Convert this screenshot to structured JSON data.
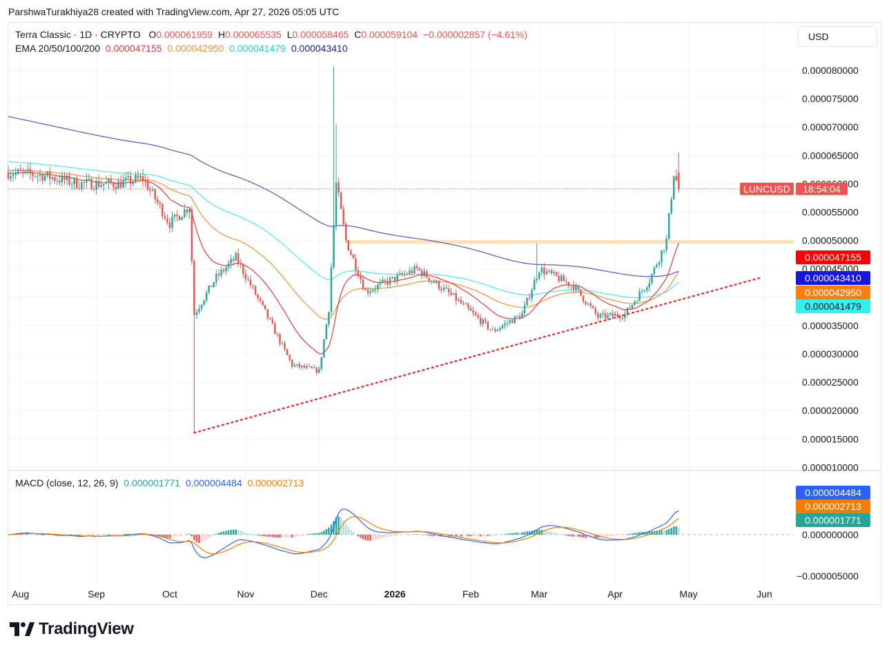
{
  "header": {
    "credit": "ParshwaTurakhiya28 created with TradingView.com, Apr 27, 2026 05:05 UTC"
  },
  "legend": {
    "symbol": "Terra Classic · 1D · CRYPTO",
    "o_label": "O",
    "o_value": "0.000061959",
    "h_label": "H",
    "h_value": "0.000065535",
    "l_label": "L",
    "l_value": "0.000058465",
    "c_label": "C",
    "c_value": "0.000059104",
    "change": "−0.000002857 (−4.61%)",
    "ema_label": "EMA 20/50/100/200",
    "ema20": "0.000047155",
    "ema50": "0.000042950",
    "ema100": "0.000041479",
    "ema200": "0.000043410",
    "macd_label": "MACD (close, 12, 26, 9)",
    "macd_hist": "0.000001771",
    "macd_line": "0.000004484",
    "macd_signal": "0.000002713"
  },
  "currency": "USD",
  "price_tag": {
    "symbol": "LUNCUSD",
    "countdown": "18:54:04"
  },
  "axis_tags": {
    "ema20": "0.000047155",
    "ema200": "0.000043410",
    "ema50": "0.000042950",
    "ema100": "0.000041479",
    "macd_line": "0.000004484",
    "macd_signal": "0.000002713",
    "macd_hist": "0.000001771"
  },
  "colors": {
    "up": "#26a69a",
    "down": "#ef5350",
    "ema20": "#e53935",
    "ema50": "#f0913a",
    "ema100": "#4ee8e4",
    "ema200": "#5b4fc4",
    "macd_line": "#2962ff",
    "macd_signal": "#f57c00",
    "trendline": "#e53935",
    "resistance": "#ffe0b2"
  },
  "brand": "TradingView",
  "chart_data": {
    "type": "candlestick",
    "title": "Terra Classic · 1D · CRYPTO",
    "x_ticks": [
      "Aug",
      "Sep",
      "Oct",
      "Nov",
      "Dec",
      "2026",
      "Feb",
      "Mar",
      "Apr",
      "May",
      "Jun"
    ],
    "y_ticks": [
      "0.000080000",
      "0.000075000",
      "0.000070000",
      "0.000065000",
      "0.000060000",
      "0.000055000",
      "0.000050000",
      "0.000045000",
      "0.000040000",
      "0.000035000",
      "0.000030000",
      "0.000025000",
      "0.000020000",
      "0.000015000",
      "0.000010000"
    ],
    "ylim": [
      1e-05,
      8e-05
    ],
    "macd_ticks": [
      "0.000000000",
      "−0.000005000"
    ],
    "price_series": [
      {
        "date": "2025-07-27",
        "close": 6.2e-05
      },
      {
        "date": "2025-08-10",
        "close": 6.15e-05
      },
      {
        "date": "2025-08-25",
        "close": 6e-05
      },
      {
        "date": "2025-09-10",
        "close": 6e-05
      },
      {
        "date": "2025-09-20",
        "close": 6.1e-05
      },
      {
        "date": "2025-10-01",
        "close": 5.3e-05
      },
      {
        "date": "2025-10-09",
        "close": 5.6e-05
      },
      {
        "date": "2025-10-11",
        "close": 3.7e-05
      },
      {
        "date": "2025-10-20",
        "close": 4.35e-05
      },
      {
        "date": "2025-10-28",
        "close": 4.7e-05
      },
      {
        "date": "2025-11-10",
        "close": 3.65e-05
      },
      {
        "date": "2025-11-20",
        "close": 2.8e-05
      },
      {
        "date": "2025-12-01",
        "close": 2.7e-05
      },
      {
        "date": "2025-12-05",
        "close": 3.8e-05
      },
      {
        "date": "2025-12-08",
        "close": 6e-05
      },
      {
        "date": "2025-12-12",
        "close": 5e-05
      },
      {
        "date": "2025-12-20",
        "close": 4.1e-05
      },
      {
        "date": "2026-01-10",
        "close": 4.5e-05
      },
      {
        "date": "2026-01-25",
        "close": 4e-05
      },
      {
        "date": "2026-02-10",
        "close": 3.4e-05
      },
      {
        "date": "2026-02-22",
        "close": 3.7e-05
      },
      {
        "date": "2026-03-01",
        "close": 4.5e-05
      },
      {
        "date": "2026-03-15",
        "close": 4.2e-05
      },
      {
        "date": "2026-03-25",
        "close": 3.65e-05
      },
      {
        "date": "2026-04-05",
        "close": 3.7e-05
      },
      {
        "date": "2026-04-15",
        "close": 4.3e-05
      },
      {
        "date": "2026-04-22",
        "close": 5e-05
      },
      {
        "date": "2026-04-25",
        "close": 6.2e-05
      },
      {
        "date": "2026-04-27",
        "close": 5.91e-05
      }
    ],
    "ema_values_latest": {
      "ema20": 4.7155e-05,
      "ema50": 4.295e-05,
      "ema100": 4.1479e-05,
      "ema200": 4.341e-05
    },
    "resistance_level": 4.97e-05,
    "trendline": [
      {
        "date": "2025-10-11",
        "value": 1.61e-05
      },
      {
        "date": "2026-05-31",
        "value": 4.35e-05
      }
    ],
    "last_price": 5.9104e-05,
    "macd_latest": {
      "macd": 4.484e-06,
      "signal": 2.713e-06,
      "histogram": 1.771e-06
    }
  }
}
